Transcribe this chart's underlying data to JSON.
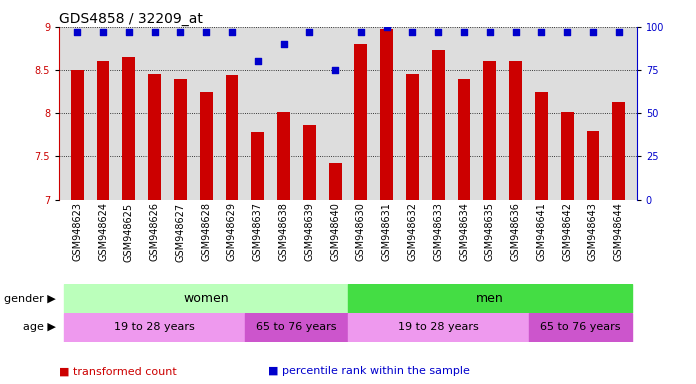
{
  "title": "GDS4858 / 32209_at",
  "samples": [
    "GSM948623",
    "GSM948624",
    "GSM948625",
    "GSM948626",
    "GSM948627",
    "GSM948628",
    "GSM948629",
    "GSM948637",
    "GSM948638",
    "GSM948639",
    "GSM948640",
    "GSM948630",
    "GSM948631",
    "GSM948632",
    "GSM948633",
    "GSM948634",
    "GSM948635",
    "GSM948636",
    "GSM948641",
    "GSM948642",
    "GSM948643",
    "GSM948644"
  ],
  "bar_values": [
    8.5,
    8.6,
    8.65,
    8.45,
    8.4,
    8.25,
    8.44,
    7.78,
    8.02,
    7.87,
    7.42,
    8.8,
    8.98,
    8.45,
    8.73,
    8.4,
    8.6,
    8.6,
    8.25,
    8.02,
    7.8,
    8.13
  ],
  "dot_values": [
    97,
    97,
    97,
    97,
    97,
    97,
    97,
    80,
    90,
    97,
    75,
    97,
    100,
    97,
    97,
    97,
    97,
    97,
    97,
    97,
    97,
    97
  ],
  "bar_color": "#cc0000",
  "dot_color": "#0000cc",
  "ylim_left": [
    7,
    9
  ],
  "ylim_right": [
    0,
    100
  ],
  "yticks_left": [
    7.0,
    7.5,
    8.0,
    8.5,
    9.0
  ],
  "yticks_right": [
    0,
    25,
    50,
    75,
    100
  ],
  "gender_women_count": 11,
  "gender_men_count": 11,
  "gender_women_color": "#bbffbb",
  "gender_men_color": "#44dd44",
  "gender_women_label": "women",
  "gender_men_label": "men",
  "age_groups": [
    {
      "label": "19 to 28 years",
      "count": 7,
      "color": "#ee99ee"
    },
    {
      "label": "65 to 76 years",
      "count": 4,
      "color": "#cc55cc"
    },
    {
      "label": "19 to 28 years",
      "count": 7,
      "color": "#ee99ee"
    },
    {
      "label": "65 to 76 years",
      "count": 4,
      "color": "#cc55cc"
    }
  ],
  "legend_items": [
    {
      "label": "transformed count",
      "color": "#cc0000"
    },
    {
      "label": "percentile rank within the sample",
      "color": "#0000cc"
    }
  ],
  "plot_bg": "#dddddd",
  "label_fontsize": 7,
  "tick_fontsize": 7
}
